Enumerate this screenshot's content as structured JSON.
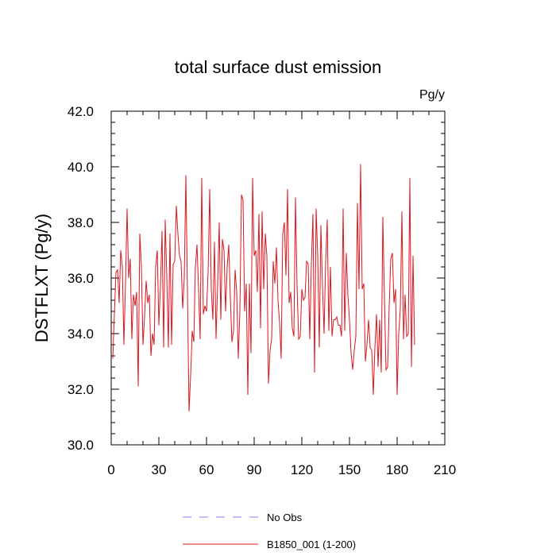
{
  "chart_data": {
    "type": "line",
    "title": "total surface dust emission",
    "units_label": "Pg/y",
    "ylabel": "DSTFLXT  (Pg/y)",
    "xlabel": "",
    "xlim": [
      0,
      210
    ],
    "ylim": [
      30.0,
      42.0
    ],
    "x_ticks": [
      0,
      30,
      60,
      90,
      120,
      150,
      180,
      210
    ],
    "y_ticks": [
      30.0,
      32.0,
      34.0,
      36.0,
      38.0,
      40.0,
      42.0
    ],
    "y_tick_labels": [
      "30.0",
      "32.0",
      "34.0",
      "36.0",
      "38.0",
      "40.0",
      "42.0"
    ],
    "grid": false,
    "legend_position": "bottom",
    "legend": [
      {
        "label": "No Obs",
        "color": "#8080ff",
        "dash": "dashed"
      },
      {
        "label": "B1850_001 (1-200)",
        "color": "#e0141e",
        "dash": "solid"
      }
    ],
    "series": [
      {
        "name": "B1850_001 (1-200)",
        "color": "#e0141e",
        "x_start": 1,
        "values": [
          33.1,
          34.7,
          36.2,
          36.3,
          35.1,
          37.0,
          36.4,
          33.6,
          35.8,
          38.5,
          36.0,
          36.7,
          33.8,
          35.4,
          35.0,
          35.5,
          32.1,
          37.6,
          36.4,
          33.6,
          34.6,
          35.9,
          35.1,
          35.4,
          33.2,
          34.0,
          33.6,
          36.4,
          37.0,
          34.3,
          35.7,
          37.7,
          33.5,
          38.1,
          36.0,
          33.5,
          37.6,
          33.6,
          36.5,
          36.6,
          38.6,
          37.6,
          36.8,
          36.6,
          34.9,
          36.0,
          39.7,
          35.5,
          31.2,
          32.5,
          34.1,
          33.7,
          36.4,
          37.2,
          35.6,
          33.8,
          39.6,
          34.7,
          35.0,
          34.8,
          36.2,
          39.2,
          35.6,
          34.5,
          37.3,
          33.8,
          35.8,
          38.0,
          34.5,
          37.4,
          37.0,
          34.8,
          36.4,
          37.2,
          35.3,
          33.7,
          34.1,
          36.3,
          35.5,
          33.1,
          34.8,
          39.0,
          38.8,
          34.8,
          35.8,
          31.8,
          35.8,
          33.3,
          39.6,
          36.8,
          37.0,
          35.5,
          38.3,
          34.2,
          38.4,
          35.6,
          37.6,
          36.8,
          32.2,
          33.4,
          33.8,
          36.6,
          35.8,
          37.1,
          35.2,
          34.4,
          33.1,
          37.6,
          38.0,
          36.1,
          39.2,
          35.1,
          35.5,
          34.2,
          33.9,
          38.9,
          35.7,
          33.8,
          33.9,
          35.6,
          35.2,
          35.3,
          36.6,
          36.5,
          33.8,
          36.5,
          38.3,
          32.6,
          38.5,
          36.8,
          33.5,
          37.9,
          35.7,
          34.0,
          36.6,
          38.1,
          34.1,
          36.4,
          33.9,
          34.5,
          34.5,
          34.6,
          34.3,
          34.3,
          33.9,
          38.5,
          34.1,
          36.9,
          35.4,
          34.5,
          33.3,
          32.7,
          33.4,
          33.9,
          38.7,
          35.6,
          40.1,
          35.6,
          35.8,
          33.0,
          33.6,
          34.5,
          33.5,
          33.4,
          31.8,
          33.5,
          34.7,
          32.8,
          34.5,
          32.6,
          38.2,
          35.3,
          32.7,
          32.8,
          35.0,
          36.7,
          36.9,
          35.1,
          35.6,
          31.8,
          34.0,
          34.9,
          38.4,
          33.8,
          35.4,
          33.9,
          34.0,
          39.6,
          32.8,
          36.8,
          33.6
        ]
      }
    ]
  }
}
